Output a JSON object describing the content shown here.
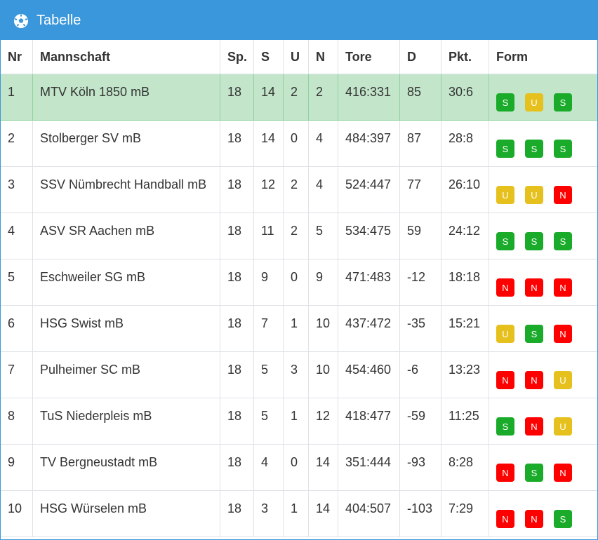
{
  "header": {
    "title": "Tabelle"
  },
  "table": {
    "columns": [
      "Nr",
      "Mannschaft",
      "Sp.",
      "S",
      "U",
      "N",
      "Tore",
      "D",
      "Pkt.",
      "Form"
    ],
    "rows": [
      {
        "cells": [
          1,
          "MTV Köln 1850 mB",
          18,
          14,
          2,
          2,
          "416:331",
          85,
          "30:6"
        ],
        "form": [
          "S",
          "U",
          "S"
        ]
      },
      {
        "cells": [
          2,
          "Stolberger SV mB",
          18,
          14,
          0,
          4,
          "484:397",
          87,
          "28:8"
        ],
        "form": [
          "S",
          "S",
          "S"
        ]
      },
      {
        "cells": [
          3,
          "SSV Nümbrecht Handball mB",
          18,
          12,
          2,
          4,
          "524:447",
          77,
          "26:10"
        ],
        "form": [
          "U",
          "U",
          "N"
        ]
      },
      {
        "cells": [
          4,
          "ASV SR Aachen mB",
          18,
          11,
          2,
          5,
          "534:475",
          59,
          "24:12"
        ],
        "form": [
          "S",
          "S",
          "S"
        ]
      },
      {
        "cells": [
          5,
          "Eschweiler SG mB",
          18,
          9,
          0,
          9,
          "471:483",
          -12,
          "18:18"
        ],
        "form": [
          "N",
          "N",
          "N"
        ]
      },
      {
        "cells": [
          6,
          "HSG Swist mB",
          18,
          7,
          1,
          10,
          "437:472",
          -35,
          "15:21"
        ],
        "form": [
          "U",
          "S",
          "N"
        ]
      },
      {
        "cells": [
          7,
          "Pulheimer SC mB",
          18,
          5,
          3,
          10,
          "454:460",
          -6,
          "13:23"
        ],
        "form": [
          "N",
          "N",
          "U"
        ]
      },
      {
        "cells": [
          8,
          "TuS Niederpleis mB",
          18,
          5,
          1,
          12,
          "418:477",
          -59,
          "11:25"
        ],
        "form": [
          "S",
          "N",
          "U"
        ]
      },
      {
        "cells": [
          9,
          "TV Bergneustadt mB",
          18,
          4,
          0,
          14,
          "351:444",
          -93,
          "8:28"
        ],
        "form": [
          "N",
          "S",
          "N"
        ]
      },
      {
        "cells": [
          10,
          "HSG Würselen mB",
          18,
          3,
          1,
          14,
          "404:507",
          -103,
          "7:29"
        ],
        "form": [
          "N",
          "N",
          "S"
        ]
      }
    ]
  }
}
